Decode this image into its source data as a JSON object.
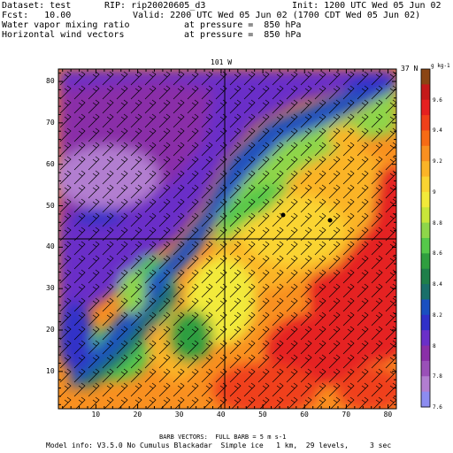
{
  "header": {
    "dataset": "Dataset: test",
    "rip": "RIP: rip20020605_d3",
    "init": "Init: 1200 UTC Wed 05 Jun 02",
    "fcst": "Fcst:   10.00",
    "valid": "Valid: 2200 UTC Wed 05 Jun 02 (1700 CDT Wed 05 Jun 02)",
    "field1_name": "Water vapor mixing ratio",
    "field1_level": "at pressure =  850 hPa",
    "field2_name": "Horizontal wind vectors",
    "field2_level": "at pressure =  850 hPa"
  },
  "map": {
    "top_label": "101 W",
    "right_label": "37 N",
    "x_ticks": [
      "10",
      "20",
      "30",
      "40",
      "50",
      "60",
      "70",
      "80"
    ],
    "y_ticks": [
      "10",
      "20",
      "30",
      "40",
      "50",
      "60",
      "70",
      "80"
    ],
    "markers": 2
  },
  "colorbar": {
    "units": "g kg-1",
    "labels": [
      "9.6",
      "9.4",
      "9.2",
      "9",
      "8.8",
      "8.6",
      "8.4",
      "8.2",
      "8",
      "7.8",
      "7.6"
    ],
    "colors": [
      "#8b4513",
      "#c41a1a",
      "#e52020",
      "#f0401a",
      "#f76b15",
      "#f99020",
      "#fbb427",
      "#fad432",
      "#f2ea3a",
      "#c8e63a",
      "#8ed64a",
      "#55c84a",
      "#2f9e3f",
      "#1f7f4a",
      "#1a6f6a",
      "#1a4fc0",
      "#3030c8",
      "#6a2fc8",
      "#8a2fa8",
      "#9a50b8",
      "#b27ed0",
      "#8c8cf0"
    ]
  },
  "footer": {
    "barb_note": "BARB VECTORS:  FULL BARB = 5 m s-1",
    "model_info": "Model info: V3.5.0 No Cumulus Blackadar  Simple ice   1 km,  29 levels,     3 sec"
  }
}
